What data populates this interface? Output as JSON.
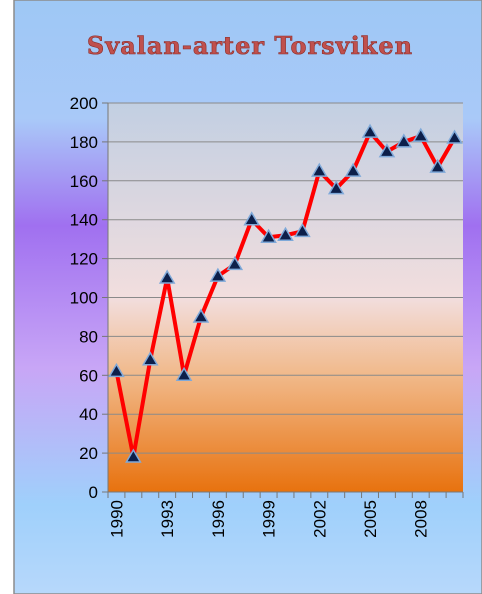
{
  "chart_data": {
    "type": "line",
    "title": "Svalan-arter Torsviken",
    "categories": [
      "1990",
      null,
      null,
      "1993",
      null,
      null,
      "1996",
      null,
      null,
      "1999",
      null,
      null,
      "2002",
      null,
      null,
      "2005",
      null,
      null,
      "2008",
      null,
      null
    ],
    "values": [
      62,
      18,
      68,
      110,
      60,
      90,
      111,
      117,
      140,
      131,
      132,
      134,
      165,
      156,
      165,
      185,
      175,
      180,
      183,
      167,
      182
    ],
    "color": "#ff0000",
    "marker_color": "#0d1f4a",
    "ylim": [
      0,
      200
    ],
    "yticks": [
      0,
      20,
      40,
      60,
      80,
      100,
      120,
      140,
      160,
      180,
      200
    ],
    "grid": true
  }
}
